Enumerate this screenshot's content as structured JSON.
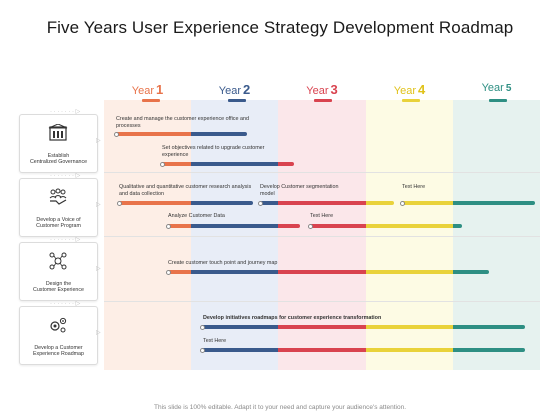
{
  "title": "Five Years User Experience Strategy Development Roadmap",
  "years": [
    {
      "label": "Year",
      "num": "1",
      "color": "#e8734a"
    },
    {
      "label": "Year",
      "num": "2",
      "color": "#3a5a8c"
    },
    {
      "label": "Year",
      "num": "3",
      "color": "#d9434f"
    },
    {
      "label": "Year",
      "num": "4",
      "color": "#e9d23a"
    },
    {
      "label": "Year",
      "num": "5",
      "color": "#2e8f83"
    }
  ],
  "column_colors": [
    "#fdeee6",
    "#e8edf7",
    "#fbe7ea",
    "#fdfbe4",
    "#e6f2ef"
  ],
  "rows": [
    {
      "icon": "governance-building-icon",
      "label": "Establish\nCentralized Governance"
    },
    {
      "icon": "voice-of-customer-icon",
      "label": "Develop a Voice of\nCustomer Program"
    },
    {
      "icon": "customer-experience-icon",
      "label": "Design the\nCustomer Experience"
    },
    {
      "icon": "gears-roadmap-icon",
      "label": "Develop a Customer\nExperience Roadmap"
    }
  ],
  "tasks": [
    "Create and manage the customer experience office and processes",
    "Set objectives related to upgrade customer experience",
    "Qualitative and quantitative customer research analysis and data collection",
    "Develop Customer segmentation model",
    "Text Here",
    "Analyze Customer Data",
    "Text Here",
    "Create customer touch point and journey map",
    "Develop initiatives roadmaps for customer experience transformation",
    "Text Here"
  ],
  "footer": "This slide is 100% editable. Adapt it to your need and capture your audience's attention."
}
